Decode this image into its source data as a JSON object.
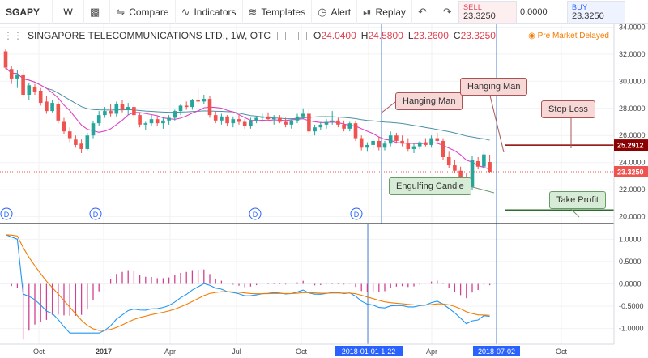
{
  "toolbar": {
    "symbol": "SGAPY",
    "interval": "W",
    "compare": "Compare",
    "indicators": "Indicators",
    "templates": "Templates",
    "alert": "Alert",
    "replay": "Replay"
  },
  "trade": {
    "sell_label": "SELL",
    "sell_value": "23.3250",
    "spread": "0.0000",
    "buy_label": "BUY",
    "buy_value": "23.3250"
  },
  "legend": {
    "title": "SINGAPORE TELECOMMUNICATIONS LTD., 1W, OTC",
    "o_label": "O",
    "o": "24.0400",
    "h_label": "H",
    "h": "24.5800",
    "l_label": "L",
    "l": "23.2600",
    "c_label": "C",
    "c": "23.3250",
    "pre_market": "Pre Market Delayed"
  },
  "annotations": {
    "hanging_man_1": "Hanging Man",
    "hanging_man_2": "Hanging Man",
    "stop_loss": "Stop Loss",
    "engulfing": "Engulfing Candle",
    "take_profit": "Take Profit"
  },
  "colors": {
    "up": "#26a69a",
    "down": "#ef5350",
    "ma_fast": "#e040c8",
    "ma_slow": "#4a90a4",
    "macd": "#2196f3",
    "signal": "#f57c00",
    "hist": "#d04090",
    "stop_line": "#8b0000",
    "tp_line": "#2e6b2e"
  },
  "chart_data": {
    "type": "candlestick",
    "y_axis": {
      "ticks": [
        "34.0000",
        "32.0000",
        "30.0000",
        "28.0000",
        "26.0000",
        "24.0000",
        "22.0000",
        "20.0000"
      ],
      "tick_values": [
        34,
        32,
        30,
        28,
        26,
        24,
        22,
        20
      ],
      "range": [
        19.5,
        34.2
      ]
    },
    "price_labels": {
      "stop": "25.2912",
      "current": "23.3250"
    },
    "levels": {
      "stop": 25.2912,
      "current": 23.325,
      "take_profit": 20.5
    },
    "x_axis": {
      "labels": [
        "Oct",
        "2017",
        "Apr",
        "Jul",
        "Oct",
        "2018-01-01 1-22",
        "Apr",
        "2018-07-02",
        "Oct"
      ]
    },
    "candles_ohlc": [
      [
        32.2,
        32.4,
        30.9,
        31.0
      ],
      [
        30.9,
        31.1,
        29.8,
        30.2
      ],
      [
        30.2,
        30.8,
        29.5,
        30.5
      ],
      [
        30.5,
        30.9,
        28.8,
        29.0
      ],
      [
        29.0,
        29.9,
        28.6,
        29.7
      ],
      [
        29.6,
        29.8,
        29.0,
        29.2
      ],
      [
        29.3,
        29.5,
        28.2,
        28.4
      ],
      [
        28.5,
        28.9,
        27.6,
        27.8
      ],
      [
        27.8,
        28.6,
        27.7,
        28.4
      ],
      [
        28.3,
        28.5,
        26.9,
        27.1
      ],
      [
        27.0,
        27.3,
        26.1,
        26.3
      ],
      [
        26.3,
        26.6,
        25.5,
        25.8
      ],
      [
        25.7,
        26.0,
        25.1,
        25.3
      ],
      [
        25.4,
        25.7,
        24.7,
        25.0
      ],
      [
        25.0,
        26.2,
        24.9,
        26.0
      ],
      [
        26.0,
        27.1,
        25.8,
        26.9
      ],
      [
        26.9,
        27.8,
        26.7,
        27.5
      ],
      [
        27.5,
        28.1,
        27.3,
        27.8
      ],
      [
        27.8,
        28.3,
        27.4,
        27.6
      ],
      [
        27.6,
        28.5,
        27.4,
        28.3
      ],
      [
        28.3,
        28.6,
        27.7,
        27.9
      ],
      [
        27.9,
        28.4,
        27.5,
        28.1
      ],
      [
        28.1,
        28.3,
        27.3,
        27.5
      ],
      [
        27.5,
        27.7,
        26.6,
        26.8
      ],
      [
        26.8,
        27.0,
        26.4,
        26.9
      ],
      [
        26.9,
        27.5,
        26.7,
        27.2
      ],
      [
        27.2,
        27.4,
        26.7,
        26.9
      ],
      [
        26.9,
        27.3,
        26.5,
        27.1
      ],
      [
        27.1,
        27.5,
        26.8,
        27.3
      ],
      [
        27.3,
        27.9,
        27.1,
        27.8
      ],
      [
        27.8,
        28.3,
        27.5,
        28.2
      ],
      [
        28.2,
        28.5,
        27.9,
        28.1
      ],
      [
        28.1,
        28.7,
        27.9,
        28.6
      ],
      [
        28.6,
        29.4,
        28.3,
        28.5
      ],
      [
        28.5,
        29.0,
        28.3,
        28.7
      ],
      [
        28.7,
        28.9,
        27.3,
        27.5
      ],
      [
        27.5,
        27.8,
        26.9,
        27.1
      ],
      [
        27.1,
        27.6,
        26.8,
        27.4
      ],
      [
        27.4,
        27.5,
        26.7,
        26.9
      ],
      [
        26.9,
        27.4,
        26.6,
        27.2
      ],
      [
        27.2,
        27.5,
        26.8,
        27.0
      ],
      [
        27.0,
        27.2,
        26.5,
        26.7
      ],
      [
        26.7,
        27.3,
        26.5,
        27.1
      ],
      [
        27.1,
        27.4,
        26.9,
        27.3
      ],
      [
        27.3,
        27.6,
        27.0,
        27.4
      ],
      [
        27.4,
        27.7,
        27.1,
        27.2
      ],
      [
        27.2,
        27.5,
        26.8,
        27.3
      ],
      [
        27.3,
        27.5,
        26.9,
        27.0
      ],
      [
        27.0,
        27.3,
        26.6,
        26.8
      ],
      [
        26.8,
        27.2,
        26.5,
        27.1
      ],
      [
        27.1,
        27.6,
        26.9,
        27.4
      ],
      [
        27.4,
        28.0,
        27.2,
        27.6
      ],
      [
        27.6,
        27.9,
        26.1,
        26.3
      ],
      [
        26.3,
        26.8,
        26.0,
        26.6
      ],
      [
        26.6,
        27.0,
        26.4,
        26.8
      ],
      [
        26.8,
        27.2,
        26.5,
        27.0
      ],
      [
        27.0,
        27.8,
        26.8,
        27.1
      ],
      [
        27.1,
        27.3,
        26.6,
        26.8
      ],
      [
        26.8,
        27.1,
        26.3,
        26.5
      ],
      [
        26.5,
        27.0,
        26.3,
        26.9
      ],
      [
        26.9,
        27.1,
        25.6,
        25.8
      ],
      [
        25.8,
        26.0,
        24.9,
        25.1
      ],
      [
        25.1,
        25.5,
        24.8,
        25.3
      ],
      [
        25.3,
        25.8,
        25.0,
        25.6
      ],
      [
        25.6,
        25.9,
        24.9,
        25.1
      ],
      [
        25.1,
        25.6,
        24.9,
        25.4
      ],
      [
        25.4,
        26.3,
        25.2,
        26.0
      ],
      [
        26.0,
        26.2,
        25.4,
        25.6
      ],
      [
        25.6,
        26.0,
        25.2,
        25.4
      ],
      [
        25.4,
        25.8,
        24.8,
        25.0
      ],
      [
        25.0,
        25.4,
        24.7,
        25.2
      ],
      [
        25.2,
        25.6,
        25.0,
        25.5
      ],
      [
        25.5,
        25.8,
        25.2,
        25.3
      ],
      [
        25.3,
        26.0,
        25.1,
        25.8
      ],
      [
        25.8,
        26.2,
        25.4,
        25.6
      ],
      [
        25.6,
        25.8,
        24.2,
        24.4
      ],
      [
        24.4,
        24.8,
        23.6,
        23.8
      ],
      [
        23.8,
        24.2,
        23.2,
        23.4
      ],
      [
        23.4,
        23.7,
        22.6,
        22.8
      ],
      [
        22.9,
        23.2,
        21.9,
        22.3
      ],
      [
        22.2,
        24.5,
        22.0,
        24.2
      ],
      [
        24.1,
        24.4,
        23.5,
        23.7
      ],
      [
        23.7,
        24.9,
        23.5,
        24.6
      ],
      [
        24.04,
        24.58,
        23.26,
        23.325
      ]
    ],
    "macd_axis": {
      "ticks": [
        "1.0000",
        "0.5000",
        "0.0000",
        "-0.5000",
        "-1.0000"
      ],
      "tick_values": [
        1,
        0.5,
        0,
        -0.5,
        -1
      ],
      "range": [
        -1.35,
        1.35
      ]
    }
  }
}
